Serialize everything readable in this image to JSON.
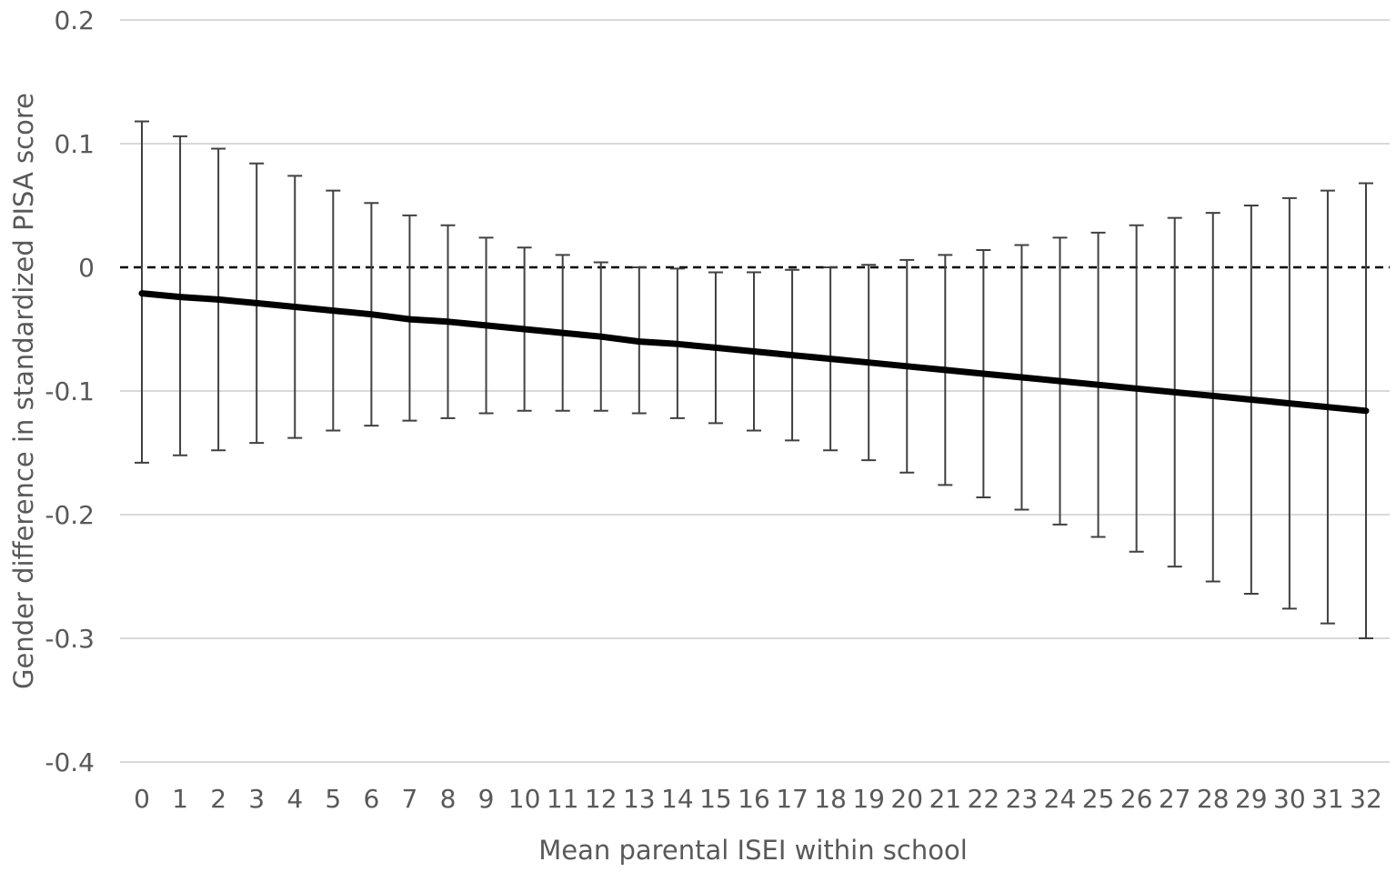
{
  "chart_data": {
    "type": "line",
    "title": "",
    "xlabel": "Mean parental ISEI within school",
    "ylabel": "Gender difference in standardized PISA score",
    "ylim": [
      -0.4,
      0.2
    ],
    "yticks": [
      0.2,
      0.1,
      0,
      -0.1,
      -0.2,
      -0.3,
      -0.4
    ],
    "ytick_labels": [
      "0.2",
      "0.1",
      "0",
      "-0.1",
      "-0.2",
      "-0.3",
      "-0.4"
    ],
    "x": [
      0,
      1,
      2,
      3,
      4,
      5,
      6,
      7,
      8,
      9,
      10,
      11,
      12,
      13,
      14,
      15,
      16,
      17,
      18,
      19,
      20,
      21,
      22,
      23,
      24,
      25,
      26,
      27,
      28,
      29,
      30,
      31,
      32
    ],
    "xtick_labels": [
      "0",
      "1",
      "2",
      "3",
      "4",
      "5",
      "6",
      "7",
      "8",
      "9",
      "10",
      "11",
      "12",
      "13",
      "14",
      "15",
      "16",
      "17",
      "18",
      "19",
      "20",
      "21",
      "22",
      "23",
      "24",
      "25",
      "26",
      "27",
      "28",
      "29",
      "30",
      "31",
      "32"
    ],
    "grid": true,
    "reference_line": {
      "y": 0,
      "style": "dashed"
    },
    "series": [
      {
        "values": [
          -0.021,
          -0.024,
          -0.026,
          -0.029,
          -0.032,
          -0.035,
          -0.038,
          -0.042,
          -0.044,
          -0.047,
          -0.05,
          -0.053,
          -0.056,
          -0.06,
          -0.062,
          -0.065,
          -0.068,
          -0.071,
          -0.074,
          -0.077,
          -0.08,
          -0.083,
          -0.086,
          -0.089,
          -0.092,
          -0.095,
          -0.098,
          -0.101,
          -0.104,
          -0.107,
          -0.11,
          -0.113,
          -0.116
        ],
        "upper": [
          0.118,
          0.106,
          0.096,
          0.084,
          0.074,
          0.062,
          0.052,
          0.042,
          0.034,
          0.024,
          0.016,
          0.01,
          0.004,
          0.0,
          -0.001,
          -0.004,
          -0.004,
          -0.002,
          0.0,
          0.002,
          0.006,
          0.01,
          0.014,
          0.018,
          0.024,
          0.028,
          0.034,
          0.04,
          0.044,
          0.05,
          0.056,
          0.062,
          0.068
        ],
        "lower": [
          -0.158,
          -0.152,
          -0.148,
          -0.142,
          -0.138,
          -0.132,
          -0.128,
          -0.124,
          -0.122,
          -0.118,
          -0.116,
          -0.116,
          -0.116,
          -0.118,
          -0.122,
          -0.126,
          -0.132,
          -0.14,
          -0.148,
          -0.156,
          -0.166,
          -0.176,
          -0.186,
          -0.196,
          -0.208,
          -0.218,
          -0.23,
          -0.242,
          -0.254,
          -0.264,
          -0.276,
          -0.288,
          -0.3
        ]
      }
    ]
  }
}
